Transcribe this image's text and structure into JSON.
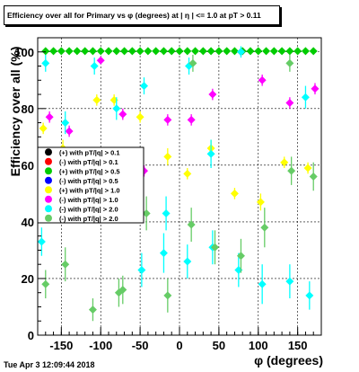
{
  "title": "Efficiency over all for Primary vs φ (degrees) at | η | <= 1.0 at pT > 0.11",
  "date": "Tue Apr  3 12:09:44 2018",
  "chart_data": {
    "type": "scatter",
    "title": "Efficiency over all for Primary vs φ (degrees) at | η | <= 1.0 at pT > 0.11",
    "xlabel": "φ (degrees)",
    "ylabel": "Efficiency over all (%)",
    "xlim": [
      -180,
      180
    ],
    "ylim": [
      0,
      105
    ],
    "xticks": [
      -150,
      -100,
      -50,
      0,
      50,
      100,
      150
    ],
    "yticks": [
      0,
      20,
      40,
      60,
      80,
      100
    ],
    "grid": true,
    "legend_position": "middle-left",
    "series": [
      {
        "name": "(+) with pT/|q| > 0.1",
        "color": "#000000",
        "x": [],
        "y": [],
        "err": []
      },
      {
        "name": "(-) with pT/|q| > 0.1",
        "color": "#ff0000",
        "x": [],
        "y": [],
        "err": []
      },
      {
        "name": "(+) with pT/|q| > 0.5",
        "color": "#00cc00",
        "x": [
          -170,
          -160,
          -150,
          -140,
          -130,
          -120,
          -110,
          -100,
          -90,
          -80,
          -70,
          -60,
          -50,
          -40,
          -30,
          -20,
          -10,
          0,
          10,
          20,
          30,
          40,
          50,
          60,
          70,
          80,
          90,
          100,
          110,
          120,
          130,
          140,
          150,
          160,
          170
        ],
        "y": [
          100.3,
          100.3,
          100.3,
          100.3,
          100.3,
          100.3,
          100.3,
          100.3,
          100.3,
          100.3,
          100.3,
          100.3,
          100.3,
          100.3,
          100.3,
          100.3,
          100.3,
          100.3,
          100.3,
          100.3,
          100.3,
          100.3,
          100.3,
          100.3,
          100.3,
          100.3,
          100.3,
          100.3,
          100.3,
          100.3,
          100.3,
          100.3,
          100.3,
          100.3,
          100.3
        ],
        "err": []
      },
      {
        "name": "(-) with pT/|q| > 0.5",
        "color": "#0000ff",
        "x": [],
        "y": [],
        "err": []
      },
      {
        "name": "(+) with pT/|q| > 1.0",
        "color": "#ffff00",
        "x": [
          -173,
          -148,
          -105,
          -83,
          -50,
          -15,
          10,
          40,
          70,
          103,
          133,
          163
        ],
        "y": [
          73,
          66,
          83,
          83,
          77,
          63,
          57,
          66,
          50,
          47,
          61,
          59
        ],
        "err": [
          2,
          3,
          2,
          2,
          2,
          3,
          2,
          3,
          2,
          3,
          2,
          2
        ]
      },
      {
        "name": "(-) with pT/|q| > 1.0",
        "color": "#ff00ff",
        "x": [
          -165,
          -140,
          -100,
          -72,
          -45,
          -15,
          15,
          42,
          78,
          105,
          140,
          172
        ],
        "y": [
          77,
          72,
          97,
          78,
          58,
          76,
          76,
          85,
          100,
          90,
          82,
          87
        ],
        "err": [
          2,
          2,
          1,
          2,
          2,
          2,
          2,
          2,
          1,
          2,
          2,
          2
        ]
      },
      {
        "name": "(-) with pT/|q| > 2.0",
        "color": "#00ffff",
        "x": [
          -175,
          -170,
          -145,
          -108,
          -103,
          -80,
          -48,
          -45,
          -20,
          -17,
          10,
          12,
          40,
          42,
          75,
          78,
          105,
          140,
          160,
          165
        ],
        "y": [
          33,
          96,
          75,
          95,
          51,
          80,
          23,
          88,
          29,
          43,
          26,
          95,
          64,
          31,
          23,
          100,
          18,
          19,
          84,
          14
        ],
        "err": [
          5,
          3,
          4,
          3,
          5,
          4,
          6,
          3,
          7,
          6,
          6,
          3,
          5,
          6,
          6,
          2,
          7,
          6,
          4,
          5
        ]
      },
      {
        "name": "(-) with pT/|q| > 2.0",
        "color": "#66cc66",
        "x": [
          -170,
          -145,
          -110,
          -77,
          -72,
          -42,
          -15,
          15,
          17,
          45,
          78,
          108,
          140,
          142,
          170
        ],
        "y": [
          18,
          25,
          9,
          15,
          16,
          43,
          14,
          39,
          96,
          31,
          28,
          38,
          96,
          58,
          56
        ],
        "err": [
          5,
          6,
          4,
          5,
          5,
          6,
          6,
          6,
          3,
          6,
          6,
          7,
          3,
          5,
          5
        ]
      }
    ]
  }
}
